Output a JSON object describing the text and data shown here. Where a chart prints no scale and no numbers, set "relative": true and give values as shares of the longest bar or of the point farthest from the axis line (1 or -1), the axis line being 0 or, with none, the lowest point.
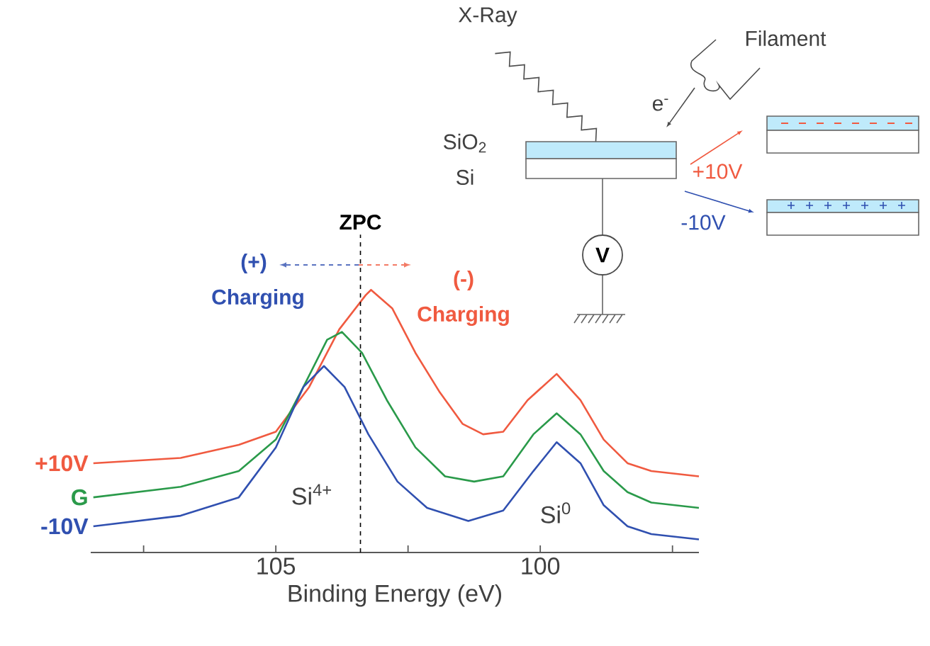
{
  "chart_data": {
    "type": "line",
    "xlabel": "Binding Energy (eV)",
    "relative": true,
    "xlim": [
      108.5,
      97
    ],
    "xticks": [
      {
        "value": 107.5,
        "label": null
      },
      105,
      {
        "value": 102.5,
        "label": null
      },
      100,
      {
        "value": 97.5,
        "label": null
      }
    ],
    "series": [
      {
        "name": "+10V",
        "color": "#f05a40",
        "x": [
          108.45,
          106.8,
          105.7,
          105,
          104.37,
          103.8,
          103.3,
          103.2,
          102.8,
          102.36,
          101.9,
          101.47,
          101.08,
          100.7,
          100.24,
          99.69,
          99.24,
          98.8,
          98.35,
          97.9,
          97.0
        ],
        "values": [
          0.34,
          0.36,
          0.41,
          0.46,
          0.63,
          0.85,
          0.98,
          1.0,
          0.93,
          0.76,
          0.61,
          0.49,
          0.45,
          0.46,
          0.58,
          0.68,
          0.58,
          0.43,
          0.34,
          0.31,
          0.29
        ]
      },
      {
        "name": "G",
        "color": "#2a9a4a",
        "x": [
          108.45,
          106.8,
          105.7,
          105,
          104.48,
          104.03,
          103.75,
          103.37,
          102.9,
          102.36,
          101.8,
          101.25,
          100.7,
          100.13,
          99.69,
          99.24,
          98.8,
          98.35,
          97.9,
          97.0
        ],
        "values": [
          0.21,
          0.25,
          0.31,
          0.43,
          0.63,
          0.81,
          0.84,
          0.76,
          0.58,
          0.4,
          0.29,
          0.27,
          0.29,
          0.45,
          0.53,
          0.45,
          0.31,
          0.23,
          0.19,
          0.17
        ]
      },
      {
        "name": "-10V",
        "color": "#3050b0",
        "x": [
          108.45,
          106.8,
          105.7,
          105,
          104.48,
          104.09,
          103.7,
          103.25,
          102.7,
          102.14,
          101.36,
          100.7,
          100.13,
          99.69,
          99.24,
          98.8,
          98.35,
          97.9,
          97.0
        ],
        "values": [
          0.1,
          0.14,
          0.21,
          0.4,
          0.63,
          0.71,
          0.63,
          0.45,
          0.27,
          0.17,
          0.12,
          0.16,
          0.31,
          0.42,
          0.34,
          0.18,
          0.1,
          0.07,
          0.05
        ]
      }
    ],
    "ref_lines": [
      {
        "axis": "x",
        "value": 103.4,
        "label": "ZPC",
        "color": "#000000",
        "line_style": "dashed"
      }
    ],
    "annotations": [
      "(+)",
      "Charging",
      "(-)",
      "Charging",
      "Si$^{4+}$",
      "Si$^{0}$",
      "X-Ray",
      "Filament",
      "e$^{-}$",
      "SiO$_{2}$",
      "Si",
      "V",
      "+10V",
      "-10V"
    ]
  }
}
